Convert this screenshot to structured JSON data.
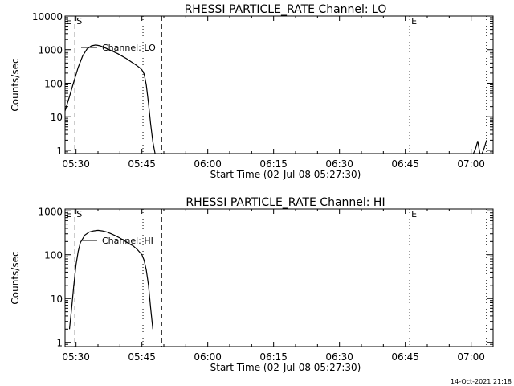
{
  "footer": {
    "timestamp": "14-Oct-2021 21:18"
  },
  "chart_data": [
    {
      "type": "line",
      "title": "RHESSI PARTICLE_RATE Channel: LO",
      "xlabel": "Start Time (02-Jul-08 05:27:30)",
      "ylabel": "Counts/sec",
      "yscale": "log",
      "xlim": [
        "05:27:30",
        "07:05:00"
      ],
      "ylim": [
        0.8,
        10000
      ],
      "x_ticks": [
        "05:30",
        "05:45",
        "06:00",
        "06:15",
        "06:30",
        "06:45",
        "07:00"
      ],
      "y_ticks": [
        {
          "value": 1,
          "label": "1"
        },
        {
          "value": 10,
          "label": "10"
        },
        {
          "value": 100,
          "label": "100"
        },
        {
          "value": 1000,
          "label": "1000"
        },
        {
          "value": 10000,
          "label": "10000"
        }
      ],
      "series": [
        {
          "name": "Channel: LO",
          "x": [
            "05:27:30",
            "05:28:30",
            "05:29:30",
            "05:30:30",
            "05:31:30",
            "05:32:30",
            "05:33:30",
            "05:34:30",
            "05:35:30",
            "05:36:30",
            "05:37:30",
            "05:38:30",
            "05:39:30",
            "05:40:30",
            "05:41:30",
            "05:42:30",
            "05:43:30",
            "05:44:30",
            "05:45:00",
            "05:45:30",
            "05:46:00",
            "05:46:30",
            "05:47:00",
            "05:47:30",
            "05:48:00"
          ],
          "y": [
            15,
            40,
            110,
            300,
            650,
            1050,
            1300,
            1380,
            1300,
            1150,
            1000,
            880,
            760,
            640,
            540,
            440,
            360,
            290,
            250,
            190,
            90,
            25,
            6,
            1.8,
            0.8
          ]
        },
        {
          "name": "",
          "x": [
            "07:00:30",
            "07:01:00",
            "07:01:30",
            "07:02:00",
            "07:02:30",
            "07:03:00",
            "07:03:30"
          ],
          "y": [
            0.8,
            1.1,
            1.9,
            0.8,
            0.8,
            1.2,
            2.0
          ]
        }
      ],
      "legend": {
        "position": "top-left",
        "label": "Channel: LO"
      },
      "markers": [
        {
          "time": "05:29:45",
          "style": "dashed",
          "label": "S"
        },
        {
          "time": "05:49:30",
          "style": "dashed",
          "label": ""
        },
        {
          "time": "05:45:15",
          "style": "dotted",
          "label": ""
        },
        {
          "time": "06:46:00",
          "style": "dotted",
          "label": "E"
        },
        {
          "time": "07:03:30",
          "style": "dotted",
          "label": ""
        }
      ],
      "corner_label": "E"
    },
    {
      "type": "line",
      "title": "RHESSI PARTICLE_RATE Channel: HI",
      "xlabel": "Start Time (02-Jul-08 05:27:30)",
      "ylabel": "Counts/sec",
      "yscale": "log",
      "xlim": [
        "05:27:30",
        "07:05:00"
      ],
      "ylim": [
        0.8,
        1100
      ],
      "x_ticks": [
        "05:30",
        "05:45",
        "06:00",
        "06:15",
        "06:30",
        "06:45",
        "07:00"
      ],
      "y_ticks": [
        {
          "value": 1,
          "label": "1"
        },
        {
          "value": 10,
          "label": "10"
        },
        {
          "value": 100,
          "label": "100"
        },
        {
          "value": 1000,
          "label": "1000"
        }
      ],
      "series": [
        {
          "name": "Channel: HI",
          "x": [
            "05:28:30",
            "05:29:00",
            "05:29:30",
            "05:30:00",
            "05:30:30",
            "05:31:00",
            "05:32:00",
            "05:33:00",
            "05:34:00",
            "05:35:00",
            "05:36:00",
            "05:37:00",
            "05:38:00",
            "05:39:00",
            "05:40:00",
            "05:41:00",
            "05:42:00",
            "05:43:00",
            "05:44:00",
            "05:45:00",
            "05:45:30",
            "05:46:00",
            "05:46:30",
            "05:47:00",
            "05:47:30"
          ],
          "y": [
            2,
            6,
            20,
            60,
            120,
            190,
            280,
            330,
            350,
            360,
            350,
            330,
            300,
            270,
            240,
            210,
            180,
            160,
            130,
            100,
            75,
            45,
            20,
            6,
            2
          ]
        }
      ],
      "legend": {
        "position": "top-left",
        "label": "Channel: HI"
      },
      "markers": [
        {
          "time": "05:29:45",
          "style": "dashed",
          "label": "S"
        },
        {
          "time": "05:49:30",
          "style": "dashed",
          "label": ""
        },
        {
          "time": "05:45:15",
          "style": "dotted",
          "label": ""
        },
        {
          "time": "06:46:00",
          "style": "dotted",
          "label": "E"
        },
        {
          "time": "07:03:30",
          "style": "dotted",
          "label": ""
        }
      ],
      "corner_label": "E"
    }
  ]
}
